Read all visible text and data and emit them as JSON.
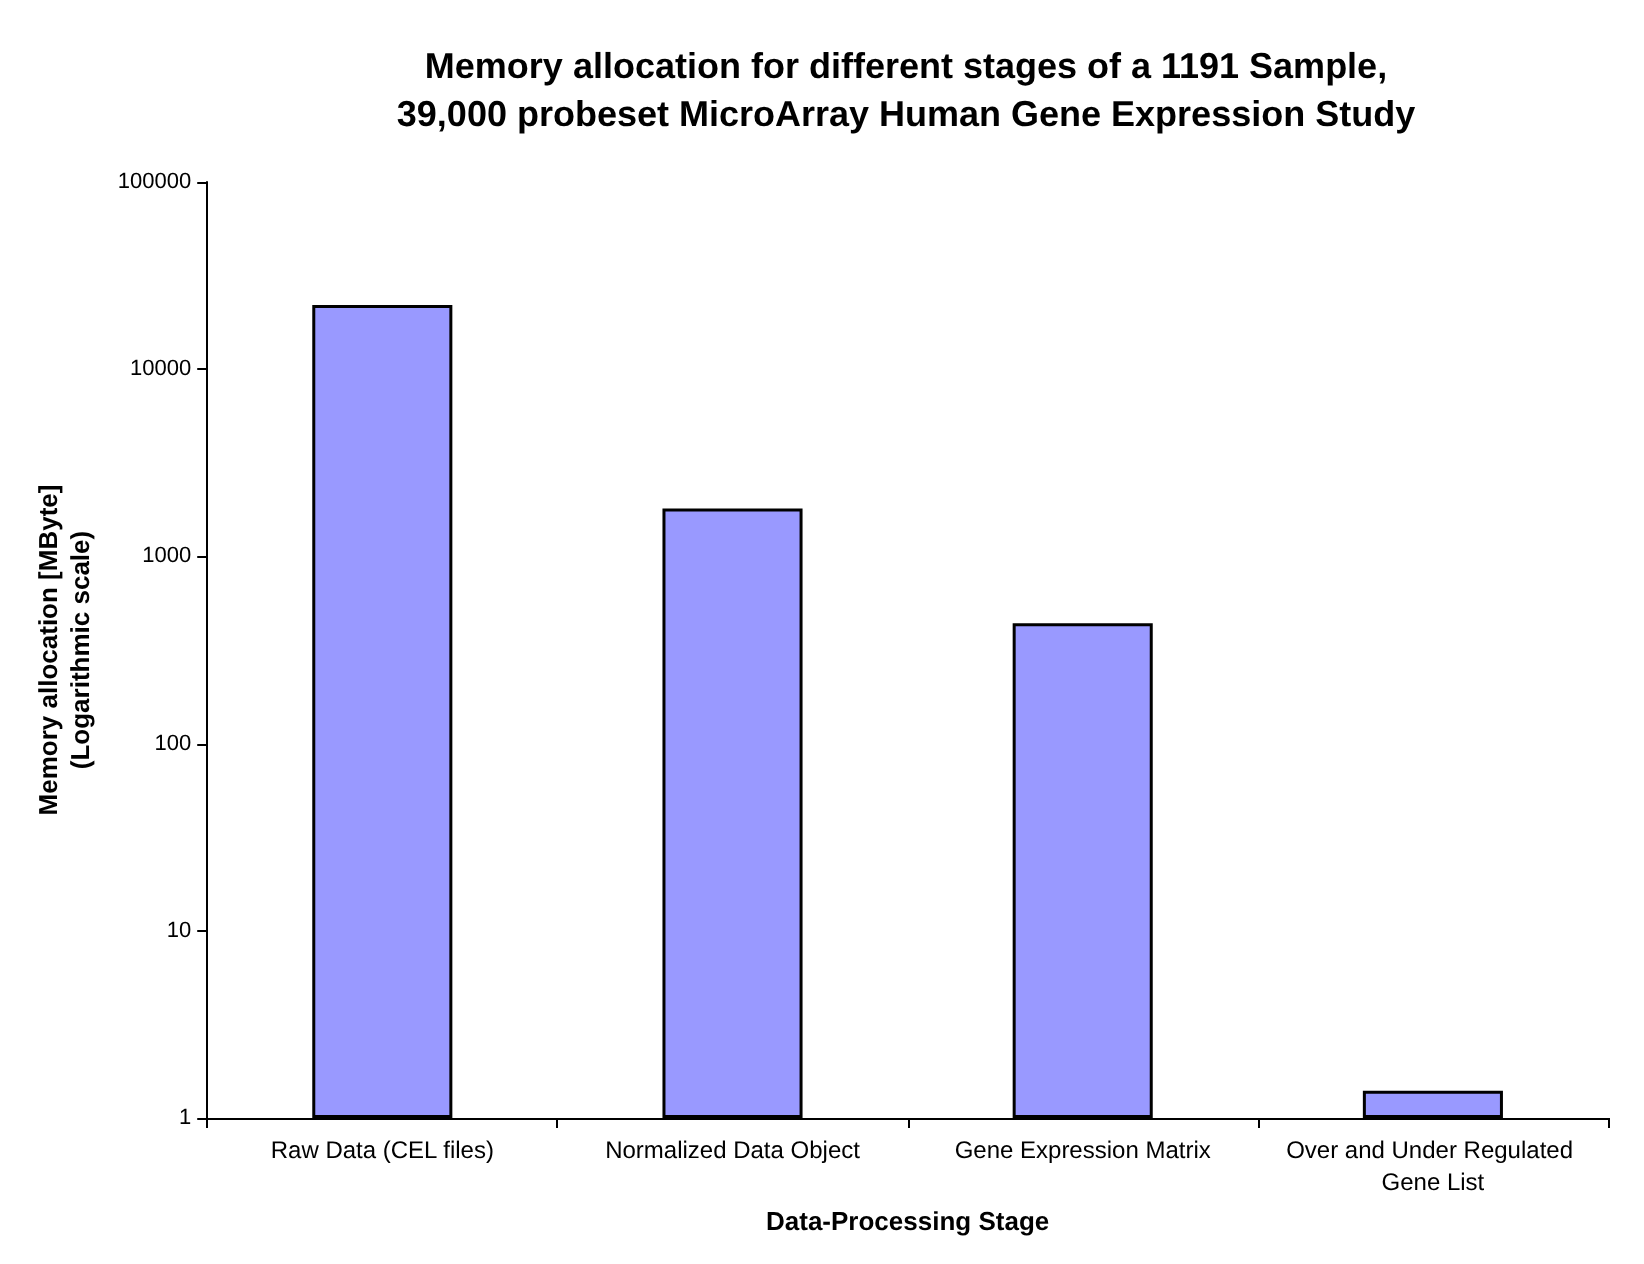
{
  "chart_data": {
    "type": "bar",
    "title": "Memory allocation for different stages of a 1191 Sample,\n39,000 probeset MicroArray Human Gene Expression Study",
    "xlabel": "Data-Processing Stage",
    "ylabel": "Memory allocation [MByte]\n(Logarithmic scale)",
    "categories": [
      "Raw Data (CEL files)",
      "Normalized Data Object",
      "Gene Expression Matrix",
      "Over and Under Regulated Gene List"
    ],
    "values": [
      22000,
      1800,
      440,
      1.4
    ],
    "color": "#9999ff",
    "log": true,
    "ylim": [
      1,
      100000
    ],
    "yticks": [
      1,
      10,
      100,
      1000,
      10000,
      100000
    ],
    "grid": false
  }
}
